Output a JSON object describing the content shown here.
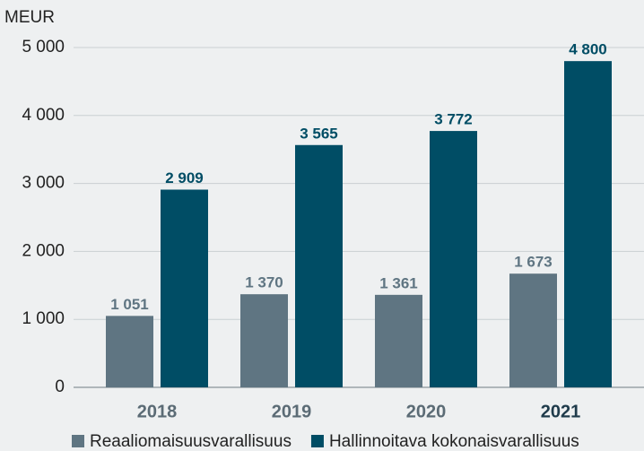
{
  "chart_data": {
    "type": "bar",
    "y_label": "MEUR",
    "categories": [
      "2018",
      "2019",
      "2020",
      "2021"
    ],
    "series": [
      {
        "name": "Reaaliomaisuusvarallisuus",
        "color": "#5f7582",
        "values": [
          1051,
          1370,
          1361,
          1673
        ],
        "value_labels": [
          "1 051",
          "1 370",
          "1 361",
          "1 673"
        ]
      },
      {
        "name": "Hallinnoitava kokonaisvarallisuus",
        "color": "#004d65",
        "values": [
          2909,
          3565,
          3772,
          4800
        ],
        "value_labels": [
          "2 909",
          "3 565",
          "3 772",
          "4 800"
        ]
      }
    ],
    "ylim": [
      0,
      5000
    ],
    "yticks": [
      0,
      {
        "value": 1000,
        "label": "1 000"
      },
      {
        "value": 2000,
        "label": "2 000"
      },
      {
        "value": 3000,
        "label": "3 000"
      },
      {
        "value": 4000,
        "label": "4 000"
      },
      {
        "value": 5000,
        "label": "5 000"
      }
    ],
    "grid": true
  }
}
